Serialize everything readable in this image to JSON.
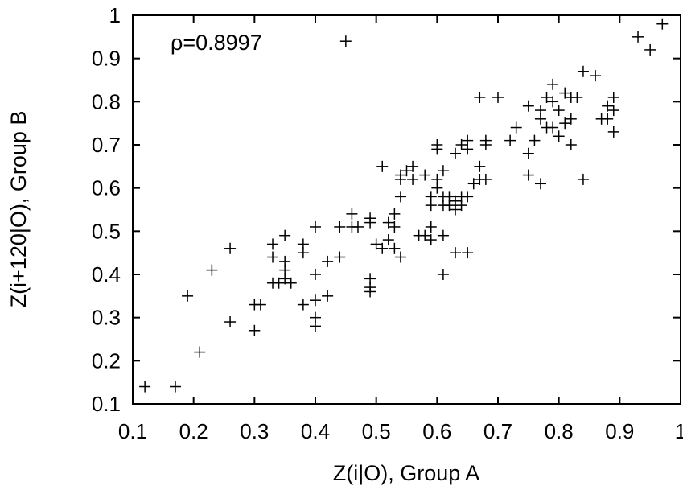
{
  "chart_data": {
    "type": "scatter",
    "title": "",
    "xlabel": "Z(i|O), Group A",
    "ylabel": "Z(i+120|O), Group B",
    "xlim": [
      0.1,
      1.0
    ],
    "ylim": [
      0.1,
      1.0
    ],
    "x_ticks": [
      "0.1",
      "0.2",
      "0.3",
      "0.4",
      "0.5",
      "0.6",
      "0.7",
      "0.8",
      "0.9",
      "1"
    ],
    "y_ticks": [
      "0.1",
      "0.2",
      "0.3",
      "0.4",
      "0.5",
      "0.6",
      "0.7",
      "0.8",
      "0.9",
      "1"
    ],
    "annotation": "ρ=0.8997",
    "grid": false,
    "marker": "+",
    "color": "#000000",
    "points": [
      [
        0.12,
        0.14
      ],
      [
        0.17,
        0.14
      ],
      [
        0.19,
        0.35
      ],
      [
        0.21,
        0.22
      ],
      [
        0.23,
        0.41
      ],
      [
        0.26,
        0.29
      ],
      [
        0.26,
        0.46
      ],
      [
        0.3,
        0.33
      ],
      [
        0.3,
        0.27
      ],
      [
        0.31,
        0.33
      ],
      [
        0.33,
        0.38
      ],
      [
        0.33,
        0.44
      ],
      [
        0.33,
        0.47
      ],
      [
        0.34,
        0.38
      ],
      [
        0.35,
        0.39
      ],
      [
        0.35,
        0.43
      ],
      [
        0.35,
        0.49
      ],
      [
        0.35,
        0.41
      ],
      [
        0.36,
        0.38
      ],
      [
        0.38,
        0.33
      ],
      [
        0.38,
        0.45
      ],
      [
        0.38,
        0.47
      ],
      [
        0.4,
        0.34
      ],
      [
        0.4,
        0.4
      ],
      [
        0.4,
        0.3
      ],
      [
        0.4,
        0.28
      ],
      [
        0.4,
        0.51
      ],
      [
        0.42,
        0.35
      ],
      [
        0.42,
        0.43
      ],
      [
        0.44,
        0.44
      ],
      [
        0.44,
        0.51
      ],
      [
        0.45,
        0.94
      ],
      [
        0.46,
        0.54
      ],
      [
        0.46,
        0.51
      ],
      [
        0.47,
        0.51
      ],
      [
        0.49,
        0.53
      ],
      [
        0.49,
        0.52
      ],
      [
        0.49,
        0.39
      ],
      [
        0.49,
        0.37
      ],
      [
        0.49,
        0.36
      ],
      [
        0.5,
        0.47
      ],
      [
        0.51,
        0.65
      ],
      [
        0.51,
        0.46
      ],
      [
        0.52,
        0.48
      ],
      [
        0.52,
        0.52
      ],
      [
        0.53,
        0.54
      ],
      [
        0.53,
        0.51
      ],
      [
        0.53,
        0.46
      ],
      [
        0.54,
        0.58
      ],
      [
        0.54,
        0.62
      ],
      [
        0.54,
        0.63
      ],
      [
        0.54,
        0.44
      ],
      [
        0.55,
        0.64
      ],
      [
        0.56,
        0.65
      ],
      [
        0.56,
        0.62
      ],
      [
        0.57,
        0.49
      ],
      [
        0.58,
        0.63
      ],
      [
        0.58,
        0.49
      ],
      [
        0.59,
        0.51
      ],
      [
        0.59,
        0.48
      ],
      [
        0.59,
        0.56
      ],
      [
        0.59,
        0.58
      ],
      [
        0.6,
        0.7
      ],
      [
        0.6,
        0.69
      ],
      [
        0.6,
        0.62
      ],
      [
        0.6,
        0.6
      ],
      [
        0.61,
        0.56
      ],
      [
        0.61,
        0.58
      ],
      [
        0.61,
        0.64
      ],
      [
        0.61,
        0.49
      ],
      [
        0.61,
        0.4
      ],
      [
        0.62,
        0.56
      ],
      [
        0.62,
        0.58
      ],
      [
        0.63,
        0.55
      ],
      [
        0.63,
        0.57
      ],
      [
        0.63,
        0.68
      ],
      [
        0.63,
        0.45
      ],
      [
        0.64,
        0.58
      ],
      [
        0.64,
        0.56
      ],
      [
        0.64,
        0.7
      ],
      [
        0.65,
        0.58
      ],
      [
        0.65,
        0.69
      ],
      [
        0.65,
        0.71
      ],
      [
        0.65,
        0.45
      ],
      [
        0.66,
        0.61
      ],
      [
        0.67,
        0.62
      ],
      [
        0.67,
        0.65
      ],
      [
        0.67,
        0.81
      ],
      [
        0.68,
        0.7
      ],
      [
        0.68,
        0.71
      ],
      [
        0.68,
        0.62
      ],
      [
        0.7,
        0.81
      ],
      [
        0.72,
        0.71
      ],
      [
        0.73,
        0.74
      ],
      [
        0.75,
        0.79
      ],
      [
        0.75,
        0.68
      ],
      [
        0.75,
        0.63
      ],
      [
        0.76,
        0.71
      ],
      [
        0.77,
        0.78
      ],
      [
        0.77,
        0.76
      ],
      [
        0.77,
        0.61
      ],
      [
        0.78,
        0.81
      ],
      [
        0.78,
        0.74
      ],
      [
        0.79,
        0.8
      ],
      [
        0.79,
        0.84
      ],
      [
        0.79,
        0.74
      ],
      [
        0.8,
        0.78
      ],
      [
        0.8,
        0.72
      ],
      [
        0.81,
        0.82
      ],
      [
        0.81,
        0.75
      ],
      [
        0.82,
        0.76
      ],
      [
        0.82,
        0.81
      ],
      [
        0.82,
        0.7
      ],
      [
        0.83,
        0.81
      ],
      [
        0.84,
        0.87
      ],
      [
        0.84,
        0.62
      ],
      [
        0.86,
        0.86
      ],
      [
        0.87,
        0.76
      ],
      [
        0.88,
        0.79
      ],
      [
        0.88,
        0.76
      ],
      [
        0.89,
        0.81
      ],
      [
        0.89,
        0.78
      ],
      [
        0.89,
        0.73
      ],
      [
        0.93,
        0.95
      ],
      [
        0.95,
        0.92
      ],
      [
        0.97,
        0.98
      ]
    ]
  }
}
